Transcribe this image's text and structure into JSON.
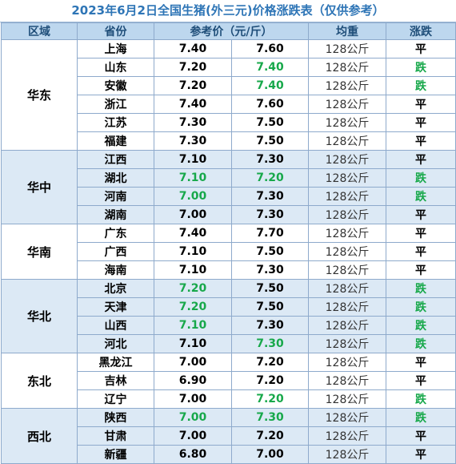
{
  "title": "2023年6月2日全国生猪(外三元)价格涨跌表（仅供参考）",
  "headers": {
    "region": "区域",
    "province": "省份",
    "price": "参考价（元/斤）",
    "weight": "均重",
    "trend": "涨跌"
  },
  "colors": {
    "title": "#2e75b6",
    "header_bg": "#bdd7ee",
    "shade_bg": "#dce9f5",
    "up": "#17a84a",
    "grid": "#8eaacc"
  },
  "groups": [
    {
      "region": "华东",
      "shade": false,
      "rows": [
        {
          "province": "上海",
          "prev": "7.40",
          "prev_up": false,
          "curr": "7.60",
          "curr_up": false,
          "weight": "128公斤",
          "trend": "平",
          "trend_up": false
        },
        {
          "province": "山东",
          "prev": "7.20",
          "prev_up": false,
          "curr": "7.40",
          "curr_up": true,
          "weight": "128公斤",
          "trend": "跌",
          "trend_up": true
        },
        {
          "province": "安徽",
          "prev": "7.20",
          "prev_up": false,
          "curr": "7.40",
          "curr_up": true,
          "weight": "128公斤",
          "trend": "跌",
          "trend_up": true
        },
        {
          "province": "浙江",
          "prev": "7.40",
          "prev_up": false,
          "curr": "7.60",
          "curr_up": false,
          "weight": "128公斤",
          "trend": "平",
          "trend_up": false
        },
        {
          "province": "江苏",
          "prev": "7.30",
          "prev_up": false,
          "curr": "7.50",
          "curr_up": false,
          "weight": "128公斤",
          "trend": "平",
          "trend_up": false
        },
        {
          "province": "福建",
          "prev": "7.30",
          "prev_up": false,
          "curr": "7.50",
          "curr_up": false,
          "weight": "128公斤",
          "trend": "平",
          "trend_up": false
        }
      ]
    },
    {
      "region": "华中",
      "shade": true,
      "rows": [
        {
          "province": "江西",
          "prev": "7.10",
          "prev_up": false,
          "curr": "7.30",
          "curr_up": false,
          "weight": "128公斤",
          "trend": "平",
          "trend_up": false
        },
        {
          "province": "湖北",
          "prev": "7.10",
          "prev_up": true,
          "curr": "7.20",
          "curr_up": true,
          "weight": "128公斤",
          "trend": "跌",
          "trend_up": true
        },
        {
          "province": "河南",
          "prev": "7.00",
          "prev_up": true,
          "curr": "7.30",
          "curr_up": false,
          "weight": "128公斤",
          "trend": "跌",
          "trend_up": true
        },
        {
          "province": "湖南",
          "prev": "7.00",
          "prev_up": false,
          "curr": "7.30",
          "curr_up": false,
          "weight": "128公斤",
          "trend": "平",
          "trend_up": false
        }
      ]
    },
    {
      "region": "华南",
      "shade": false,
      "rows": [
        {
          "province": "广东",
          "prev": "7.40",
          "prev_up": false,
          "curr": "7.70",
          "curr_up": false,
          "weight": "128公斤",
          "trend": "平",
          "trend_up": false
        },
        {
          "province": "广西",
          "prev": "7.10",
          "prev_up": false,
          "curr": "7.50",
          "curr_up": false,
          "weight": "128公斤",
          "trend": "平",
          "trend_up": false
        },
        {
          "province": "海南",
          "prev": "7.10",
          "prev_up": false,
          "curr": "7.30",
          "curr_up": false,
          "weight": "128公斤",
          "trend": "平",
          "trend_up": false
        }
      ]
    },
    {
      "region": "华北",
      "shade": true,
      "rows": [
        {
          "province": "北京",
          "prev": "7.20",
          "prev_up": true,
          "curr": "7.50",
          "curr_up": false,
          "weight": "128公斤",
          "trend": "跌",
          "trend_up": true
        },
        {
          "province": "天津",
          "prev": "7.20",
          "prev_up": true,
          "curr": "7.50",
          "curr_up": false,
          "weight": "128公斤",
          "trend": "跌",
          "trend_up": true
        },
        {
          "province": "山西",
          "prev": "7.10",
          "prev_up": true,
          "curr": "7.30",
          "curr_up": false,
          "weight": "128公斤",
          "trend": "跌",
          "trend_up": true
        },
        {
          "province": "河北",
          "prev": "7.10",
          "prev_up": false,
          "curr": "7.30",
          "curr_up": true,
          "weight": "128公斤",
          "trend": "跌",
          "trend_up": true
        }
      ]
    },
    {
      "region": "东北",
      "shade": false,
      "rows": [
        {
          "province": "黑龙江",
          "prev": "7.00",
          "prev_up": false,
          "curr": "7.20",
          "curr_up": false,
          "weight": "128公斤",
          "trend": "平",
          "trend_up": false
        },
        {
          "province": "吉林",
          "prev": "6.90",
          "prev_up": false,
          "curr": "7.20",
          "curr_up": false,
          "weight": "128公斤",
          "trend": "平",
          "trend_up": false
        },
        {
          "province": "辽宁",
          "prev": "7.00",
          "prev_up": false,
          "curr": "7.20",
          "curr_up": true,
          "weight": "128公斤",
          "trend": "跌",
          "trend_up": true
        }
      ]
    },
    {
      "region": "西北",
      "shade": true,
      "rows": [
        {
          "province": "陕西",
          "prev": "7.00",
          "prev_up": true,
          "curr": "7.30",
          "curr_up": true,
          "weight": "128公斤",
          "trend": "跌",
          "trend_up": true
        },
        {
          "province": "甘肃",
          "prev": "7.00",
          "prev_up": false,
          "curr": "7.20",
          "curr_up": false,
          "weight": "128公斤",
          "trend": "平",
          "trend_up": false
        },
        {
          "province": "新疆",
          "prev": "6.80",
          "prev_up": false,
          "curr": "7.00",
          "curr_up": false,
          "weight": "128公斤",
          "trend": "平",
          "trend_up": false
        }
      ]
    }
  ]
}
